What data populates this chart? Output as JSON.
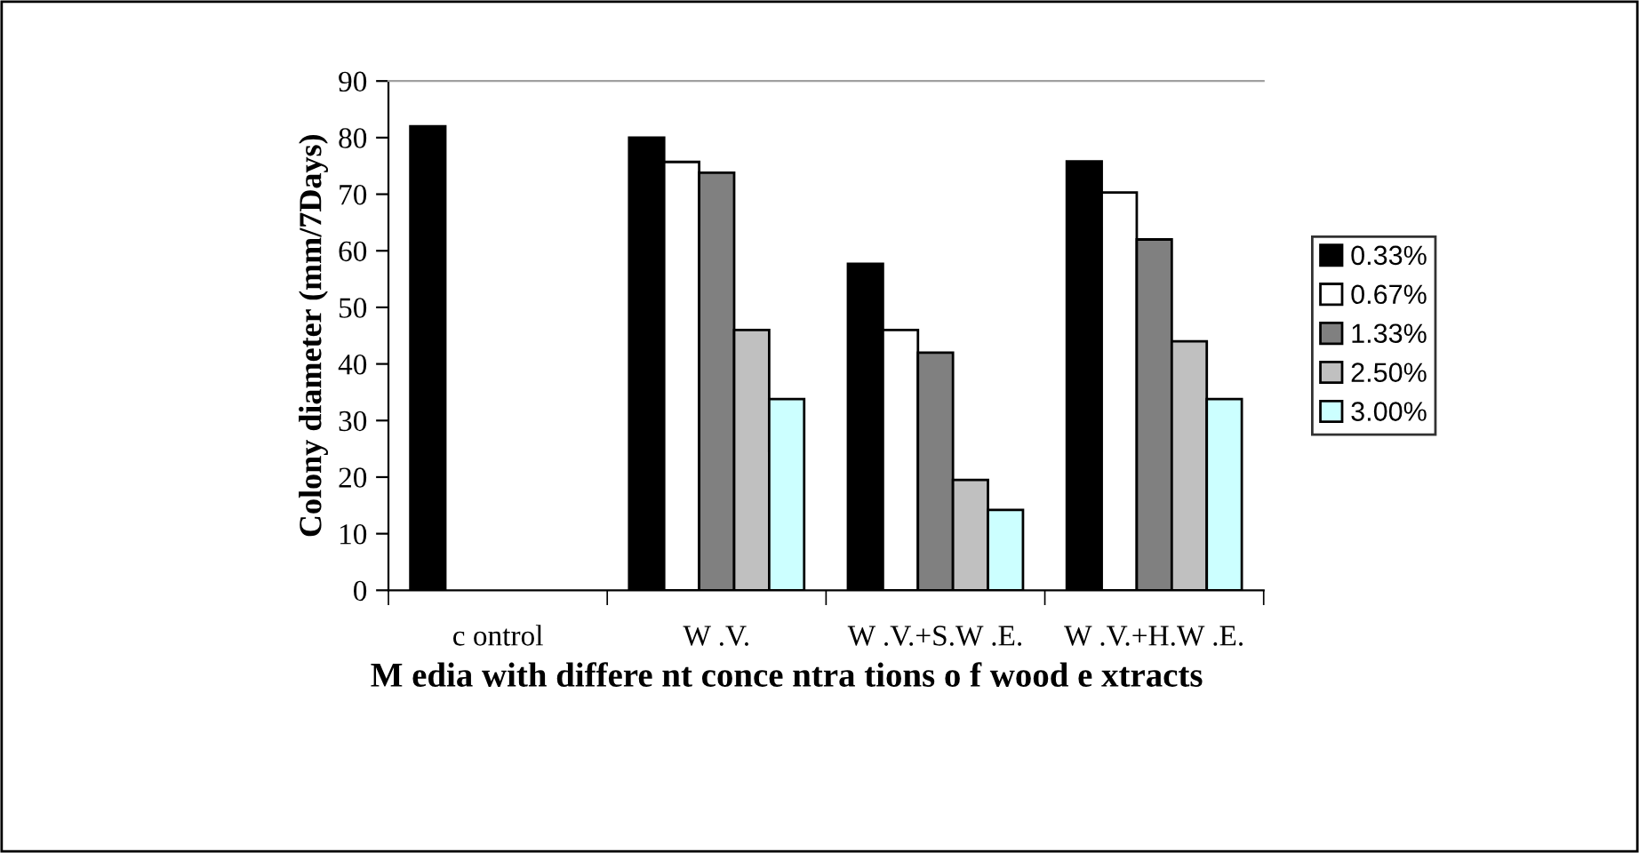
{
  "chart_data": {
    "type": "bar",
    "xlabel": "M edia with differe nt conce ntra tions o f wood e xtracts",
    "ylabel": "Colony diameter (mm/7Days)",
    "categories": [
      "c ontrol",
      "W .V.",
      "W .V.+S.W .E.",
      "W .V.+H.W .E."
    ],
    "series": [
      {
        "name": "0.33%",
        "color": "#000000",
        "values": [
          82,
          80,
          57.7,
          75.8
        ]
      },
      {
        "name": "0.67%",
        "color": "#ffffff",
        "values": [
          null,
          75.7,
          46,
          70.3
        ]
      },
      {
        "name": "1.33%",
        "color": "#808080",
        "values": [
          null,
          73.8,
          42,
          62
        ]
      },
      {
        "name": "2.50%",
        "color": "#c0c0c0",
        "values": [
          null,
          46,
          19.5,
          44
        ]
      },
      {
        "name": "3.00%",
        "color": "#ccffff",
        "values": [
          null,
          33.8,
          14.2,
          33.8
        ]
      }
    ],
    "ylim": [
      0,
      90
    ],
    "yticks": [
      0,
      10,
      20,
      30,
      40,
      50,
      60,
      70,
      80,
      90
    ],
    "grid": false,
    "legend": "right"
  }
}
